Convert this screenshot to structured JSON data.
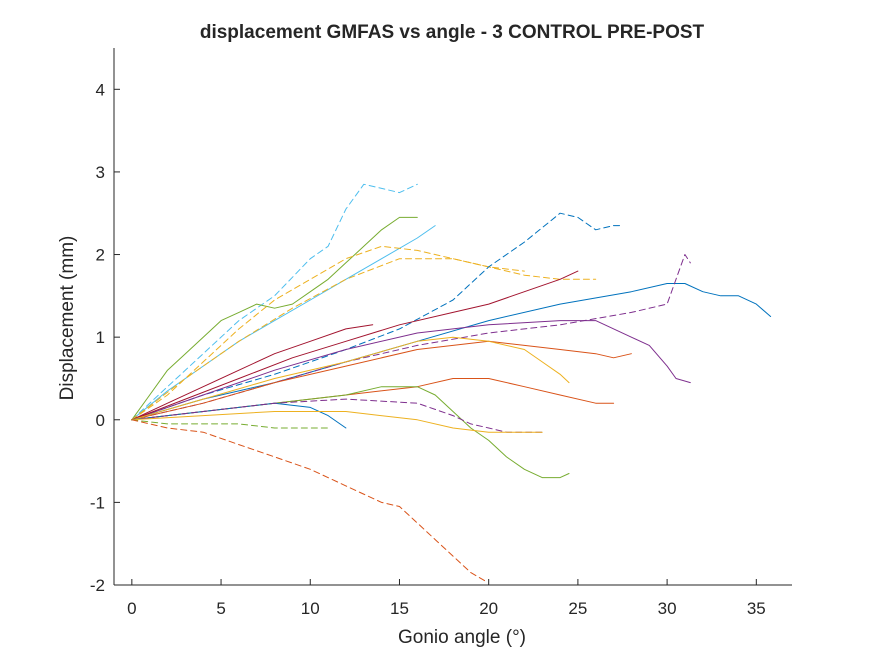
{
  "chart_data": {
    "type": "line",
    "title": "displacement GMFAS vs angle - 3 CONTROL PRE-POST",
    "xlabel": "Gonio angle (°)",
    "ylabel": "Displacement (mm)",
    "xlim": [
      -1,
      37
    ],
    "ylim": [
      -2,
      4.5
    ],
    "xticks": [
      0,
      5,
      10,
      15,
      20,
      25,
      30,
      35
    ],
    "yticks": [
      -2,
      -1,
      0,
      1,
      2,
      3,
      4
    ],
    "grid": false,
    "legend": "none",
    "series": [
      {
        "color": "#4DBEEE",
        "dash": true,
        "x": [
          0,
          2,
          4,
          6,
          8,
          10,
          11,
          12,
          13,
          14,
          15,
          16
        ],
        "y": [
          0,
          0.4,
          0.8,
          1.2,
          1.5,
          1.95,
          2.1,
          2.55,
          2.85,
          2.8,
          2.75,
          2.85
        ]
      },
      {
        "color": "#77AC30",
        "dash": false,
        "x": [
          0,
          1,
          2,
          3,
          4,
          5,
          6,
          7,
          8,
          9,
          10,
          11,
          12,
          13,
          14,
          15,
          16
        ],
        "y": [
          0,
          0.3,
          0.6,
          0.8,
          1.0,
          1.2,
          1.3,
          1.4,
          1.35,
          1.4,
          1.55,
          1.7,
          1.9,
          2.1,
          2.3,
          2.45,
          2.45
        ]
      },
      {
        "color": "#4DBEEE",
        "dash": false,
        "x": [
          0,
          2,
          4,
          6,
          8,
          10,
          12,
          14,
          16,
          17
        ],
        "y": [
          0,
          0.35,
          0.65,
          0.95,
          1.2,
          1.45,
          1.7,
          1.95,
          2.2,
          2.35
        ]
      },
      {
        "color": "#EDB120",
        "dash": true,
        "x": [
          0,
          2,
          4,
          6,
          8,
          10,
          12,
          14,
          16,
          18,
          20,
          22
        ],
        "y": [
          0,
          0.3,
          0.7,
          1.1,
          1.45,
          1.7,
          1.95,
          2.1,
          2.05,
          1.95,
          1.85,
          1.8
        ]
      },
      {
        "color": "#EDB120",
        "dash": true,
        "x": [
          0,
          3,
          6,
          9,
          12,
          15,
          18,
          20,
          22,
          24,
          26
        ],
        "y": [
          0,
          0.5,
          0.95,
          1.35,
          1.7,
          1.95,
          1.95,
          1.85,
          1.75,
          1.7,
          1.7
        ]
      },
      {
        "color": "#0072BD",
        "dash": true,
        "x": [
          0,
          4,
          8,
          12,
          15,
          18,
          20,
          22,
          24,
          25,
          26,
          27,
          27.5
        ],
        "y": [
          0,
          0.3,
          0.55,
          0.85,
          1.1,
          1.45,
          1.85,
          2.15,
          2.5,
          2.45,
          2.3,
          2.35,
          2.35
        ]
      },
      {
        "color": "#0072BD",
        "dash": false,
        "x": [
          0,
          4,
          8,
          12,
          16,
          20,
          24,
          28,
          30,
          31,
          32,
          33,
          34,
          35,
          35.8
        ],
        "y": [
          0,
          0.25,
          0.45,
          0.7,
          0.95,
          1.2,
          1.4,
          1.55,
          1.65,
          1.65,
          1.55,
          1.5,
          1.5,
          1.4,
          1.25
        ]
      },
      {
        "color": "#7E2F8E",
        "dash": false,
        "x": [
          0,
          4,
          8,
          12,
          16,
          20,
          24,
          26,
          28,
          29,
          30,
          30.5,
          31.3
        ],
        "y": [
          0,
          0.3,
          0.6,
          0.85,
          1.05,
          1.15,
          1.2,
          1.2,
          1.0,
          0.9,
          0.65,
          0.5,
          0.45
        ]
      },
      {
        "color": "#7E2F8E",
        "dash": true,
        "x": [
          0,
          4,
          8,
          12,
          16,
          20,
          24,
          28,
          30,
          30.5,
          31,
          31.3
        ],
        "y": [
          0,
          0.2,
          0.45,
          0.7,
          0.9,
          1.05,
          1.15,
          1.3,
          1.4,
          1.7,
          2.0,
          1.9
        ]
      },
      {
        "color": "#A2142F",
        "dash": false,
        "x": [
          0,
          3,
          6,
          9,
          12,
          15,
          18,
          20,
          22,
          24,
          25
        ],
        "y": [
          0,
          0.25,
          0.5,
          0.75,
          0.95,
          1.15,
          1.3,
          1.4,
          1.55,
          1.7,
          1.8
        ]
      },
      {
        "color": "#A2142F",
        "dash": false,
        "x": [
          0,
          2,
          4,
          6,
          8,
          10,
          12,
          13.5
        ],
        "y": [
          0,
          0.2,
          0.4,
          0.6,
          0.8,
          0.95,
          1.1,
          1.15
        ]
      },
      {
        "color": "#D95319",
        "dash": false,
        "x": [
          0,
          4,
          8,
          12,
          16,
          20,
          22,
          24,
          26,
          27,
          28
        ],
        "y": [
          0,
          0.2,
          0.45,
          0.65,
          0.85,
          0.95,
          0.9,
          0.85,
          0.8,
          0.75,
          0.8
        ]
      },
      {
        "color": "#EDB120",
        "dash": false,
        "x": [
          0,
          4,
          8,
          12,
          16,
          18,
          20,
          22,
          23,
          24,
          24.5
        ],
        "y": [
          0,
          0.25,
          0.5,
          0.7,
          0.95,
          1.0,
          0.95,
          0.85,
          0.7,
          0.55,
          0.45
        ]
      },
      {
        "color": "#D95319",
        "dash": false,
        "x": [
          0,
          4,
          8,
          12,
          16,
          18,
          20,
          22,
          24,
          26,
          27
        ],
        "y": [
          0,
          0.1,
          0.2,
          0.3,
          0.4,
          0.5,
          0.5,
          0.4,
          0.3,
          0.2,
          0.2
        ]
      },
      {
        "color": "#77AC30",
        "dash": false,
        "x": [
          0,
          4,
          8,
          12,
          14,
          16,
          17,
          18,
          19,
          20,
          21,
          22,
          23,
          24,
          24.5
        ],
        "y": [
          0,
          0.1,
          0.2,
          0.3,
          0.4,
          0.4,
          0.3,
          0.1,
          -0.1,
          -0.25,
          -0.45,
          -0.6,
          -0.7,
          -0.7,
          -0.65
        ]
      },
      {
        "color": "#0072BD",
        "dash": false,
        "x": [
          0,
          2,
          4,
          6,
          8,
          10,
          11,
          12
        ],
        "y": [
          0,
          0.05,
          0.1,
          0.15,
          0.2,
          0.15,
          0.05,
          -0.1
        ]
      },
      {
        "color": "#7E2F8E",
        "dash": true,
        "x": [
          0,
          4,
          8,
          12,
          16,
          18,
          19,
          20,
          21,
          22,
          23
        ],
        "y": [
          0,
          0.1,
          0.2,
          0.25,
          0.2,
          0.05,
          -0.05,
          -0.1,
          -0.15,
          -0.15,
          -0.15
        ]
      },
      {
        "color": "#EDB120",
        "dash": false,
        "x": [
          0,
          4,
          8,
          12,
          16,
          18,
          20,
          22,
          23
        ],
        "y": [
          0,
          0.05,
          0.1,
          0.1,
          0.0,
          -0.1,
          -0.15,
          -0.15,
          -0.15
        ]
      },
      {
        "color": "#77AC30",
        "dash": true,
        "x": [
          0,
          2,
          4,
          6,
          8,
          10,
          11
        ],
        "y": [
          0,
          -0.05,
          -0.05,
          -0.05,
          -0.1,
          -0.1,
          -0.1
        ]
      },
      {
        "color": "#D95319",
        "dash": true,
        "x": [
          0,
          2,
          4,
          6,
          8,
          10,
          12,
          14,
          15,
          16,
          17,
          18,
          19,
          19.8
        ],
        "y": [
          0,
          -0.1,
          -0.15,
          -0.3,
          -0.45,
          -0.6,
          -0.8,
          -1.0,
          -1.05,
          -1.25,
          -1.45,
          -1.65,
          -1.85,
          -1.95
        ]
      }
    ]
  }
}
